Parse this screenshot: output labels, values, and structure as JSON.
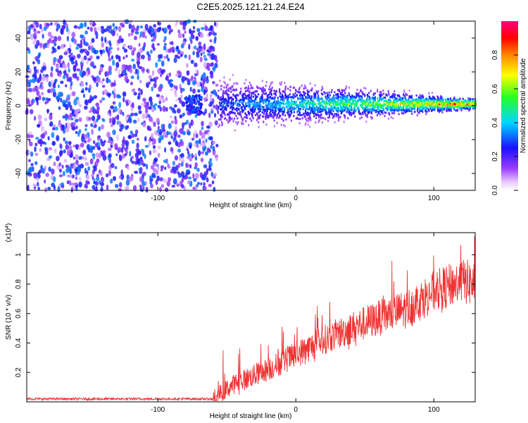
{
  "title": "C2E5.2025.121.21.24.E24",
  "chart_data": [
    {
      "type": "heatmap",
      "title": "C2E5.2025.121.21.24.E24",
      "xlabel": "Height of straight line (km)",
      "ylabel": "Frequency (Hz)",
      "xlim": [
        -195,
        130
      ],
      "ylim": [
        -50,
        50
      ],
      "x_ticks": [
        -100,
        0,
        100
      ],
      "y_ticks": [
        -40,
        -20,
        0,
        20,
        40
      ],
      "colorbar": {
        "label": "Normalized spectral amplitude",
        "range": [
          0,
          1
        ],
        "ticks": [
          0.0,
          0.2,
          0.4,
          0.6,
          0.8
        ],
        "colors": [
          "#ffffff",
          "#e9c8ff",
          "#9a3cff",
          "#1a10ff",
          "#00d8ff",
          "#26ff26",
          "#ffff00",
          "#ff8800",
          "#ff0000",
          "#ff0080"
        ]
      },
      "regions": [
        {
          "x_range": [
            -195,
            -57
          ],
          "freq_range": [
            -50,
            50
          ],
          "amplitude": [
            0.05,
            0.35
          ],
          "description": "broadband noise"
        },
        {
          "x_range": [
            -57,
            130
          ],
          "freq_center": 1,
          "freq_halfwidth": [
            20,
            5
          ],
          "amplitude_trend": [
            0.25,
            0.95
          ]
        }
      ]
    },
    {
      "type": "line",
      "xlabel": "Height of straight line (km)",
      "ylabel": "SNR (10 * v/v)",
      "y_multiplier": "(x10^4)",
      "xlim": [
        -195,
        130
      ],
      "ylim": [
        0,
        1.15
      ],
      "x_ticks": [
        -100,
        0,
        100
      ],
      "y_ticks": [
        0.2,
        0.4,
        0.6,
        0.8,
        1
      ],
      "color": "#f03232",
      "series": [
        {
          "x": [
            -195,
            -150,
            -100,
            -60,
            -45,
            -20,
            0,
            20,
            40,
            60,
            80,
            100,
            120,
            130
          ],
          "y": [
            0.02,
            0.02,
            0.02,
            0.02,
            0.12,
            0.22,
            0.32,
            0.42,
            0.5,
            0.57,
            0.63,
            0.75,
            0.82,
            0.8
          ]
        }
      ]
    }
  ]
}
